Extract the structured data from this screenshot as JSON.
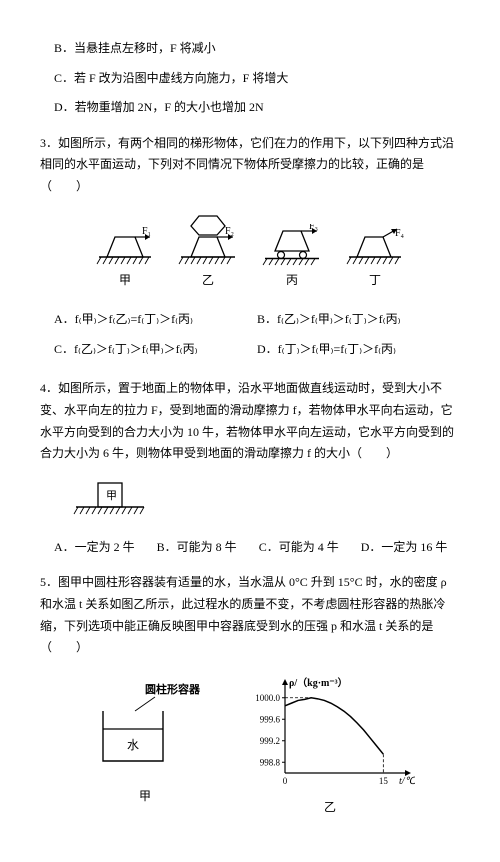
{
  "q2": {
    "optB": "B．当悬挂点左移时，F 将减小",
    "optC": "C．若 F 改为沿图中虚线方向施力，F 将增大",
    "optD": "D．若物重增加 2N，F 的大小也增加 2N"
  },
  "q3": {
    "stem": "3．如图所示，有两个相同的梯形物体，它们在力的作用下，以下列四种方式沿相同的水平面运动，下列对不同情况下物体所受摩擦力的比较，正确的是（　　）",
    "labels": {
      "jia": "甲",
      "yi": "乙",
      "bing": "丙",
      "ding": "丁"
    },
    "arrows": {
      "f1": "F₁",
      "f2": "F₂",
      "f3": "F₃",
      "f4": "F₄"
    },
    "A": "A．f₍甲₎＞f₍乙₎=f₍丁₎＞f₍丙₎",
    "B": "B．f₍乙₎＞f₍甲₎＞f₍丁₎＞f₍丙₎",
    "C": "C．f₍乙₎＞f₍丁₎＞f₍甲₎＞f₍丙₎",
    "D": "D．f₍丁₎＞f₍甲₎=f₍丁₎＞f₍丙₎"
  },
  "q4": {
    "stem": "4．如图所示，置于地面上的物体甲，沿水平地面做直线运动时，受到大小不变、水平向左的拉力 F，受到地面的滑动摩擦力 f，若物体甲水平向右运动，它水平方向受到的合力大小为 10 牛，若物体甲水平向左运动，它水平方向受到的合力大小为 6 牛，则物体甲受到地面的滑动摩擦力 f 的大小（　　）",
    "label": "甲",
    "A": "A．一定为 2 牛",
    "B": "B．可能为 8 牛",
    "C": "C．可能为 4 牛",
    "D": "D．一定为 16 牛"
  },
  "q5": {
    "stem": "5．图甲中圆柱形容器装有适量的水，当水温从 0°C 升到 15°C 时，水的密度 ρ 和水温 t 关系如图乙所示，此过程水的质量不变，不考虑圆柱形容器的热胀冷缩，下列选项中能正确反映图甲中容器底受到水的压强 p 和水温 t 关系的是（　　）",
    "container_label": "圆柱形容器",
    "water_label": "水",
    "jia": "甲",
    "yi": "乙",
    "chart": {
      "ylabel": "ρ/（kg·m⁻³）",
      "xlabel": "t/℃",
      "yticks": [
        "1000.0",
        "999.6",
        "999.2",
        "998.8"
      ],
      "xticks": [
        "0",
        "15"
      ],
      "x_range": [
        0,
        18
      ],
      "y_range": [
        998.6,
        1000.2
      ],
      "curve_color": "#000000",
      "grid_color": "#000000",
      "dash_color": "#000000",
      "bg": "#ffffff",
      "points": [
        [
          0,
          999.85
        ],
        [
          1,
          999.9
        ],
        [
          2,
          999.95
        ],
        [
          3,
          999.97
        ],
        [
          4,
          1000.0
        ],
        [
          5,
          999.98
        ],
        [
          6,
          999.95
        ],
        [
          7,
          999.9
        ],
        [
          8,
          999.83
        ],
        [
          9,
          999.75
        ],
        [
          10,
          999.65
        ],
        [
          11,
          999.53
        ],
        [
          12,
          999.4
        ],
        [
          13,
          999.25
        ],
        [
          14,
          999.1
        ],
        [
          15,
          998.95
        ]
      ]
    }
  },
  "colors": {
    "line": "#000000",
    "fill_water": "#ffffff",
    "hatch": "#000000"
  }
}
